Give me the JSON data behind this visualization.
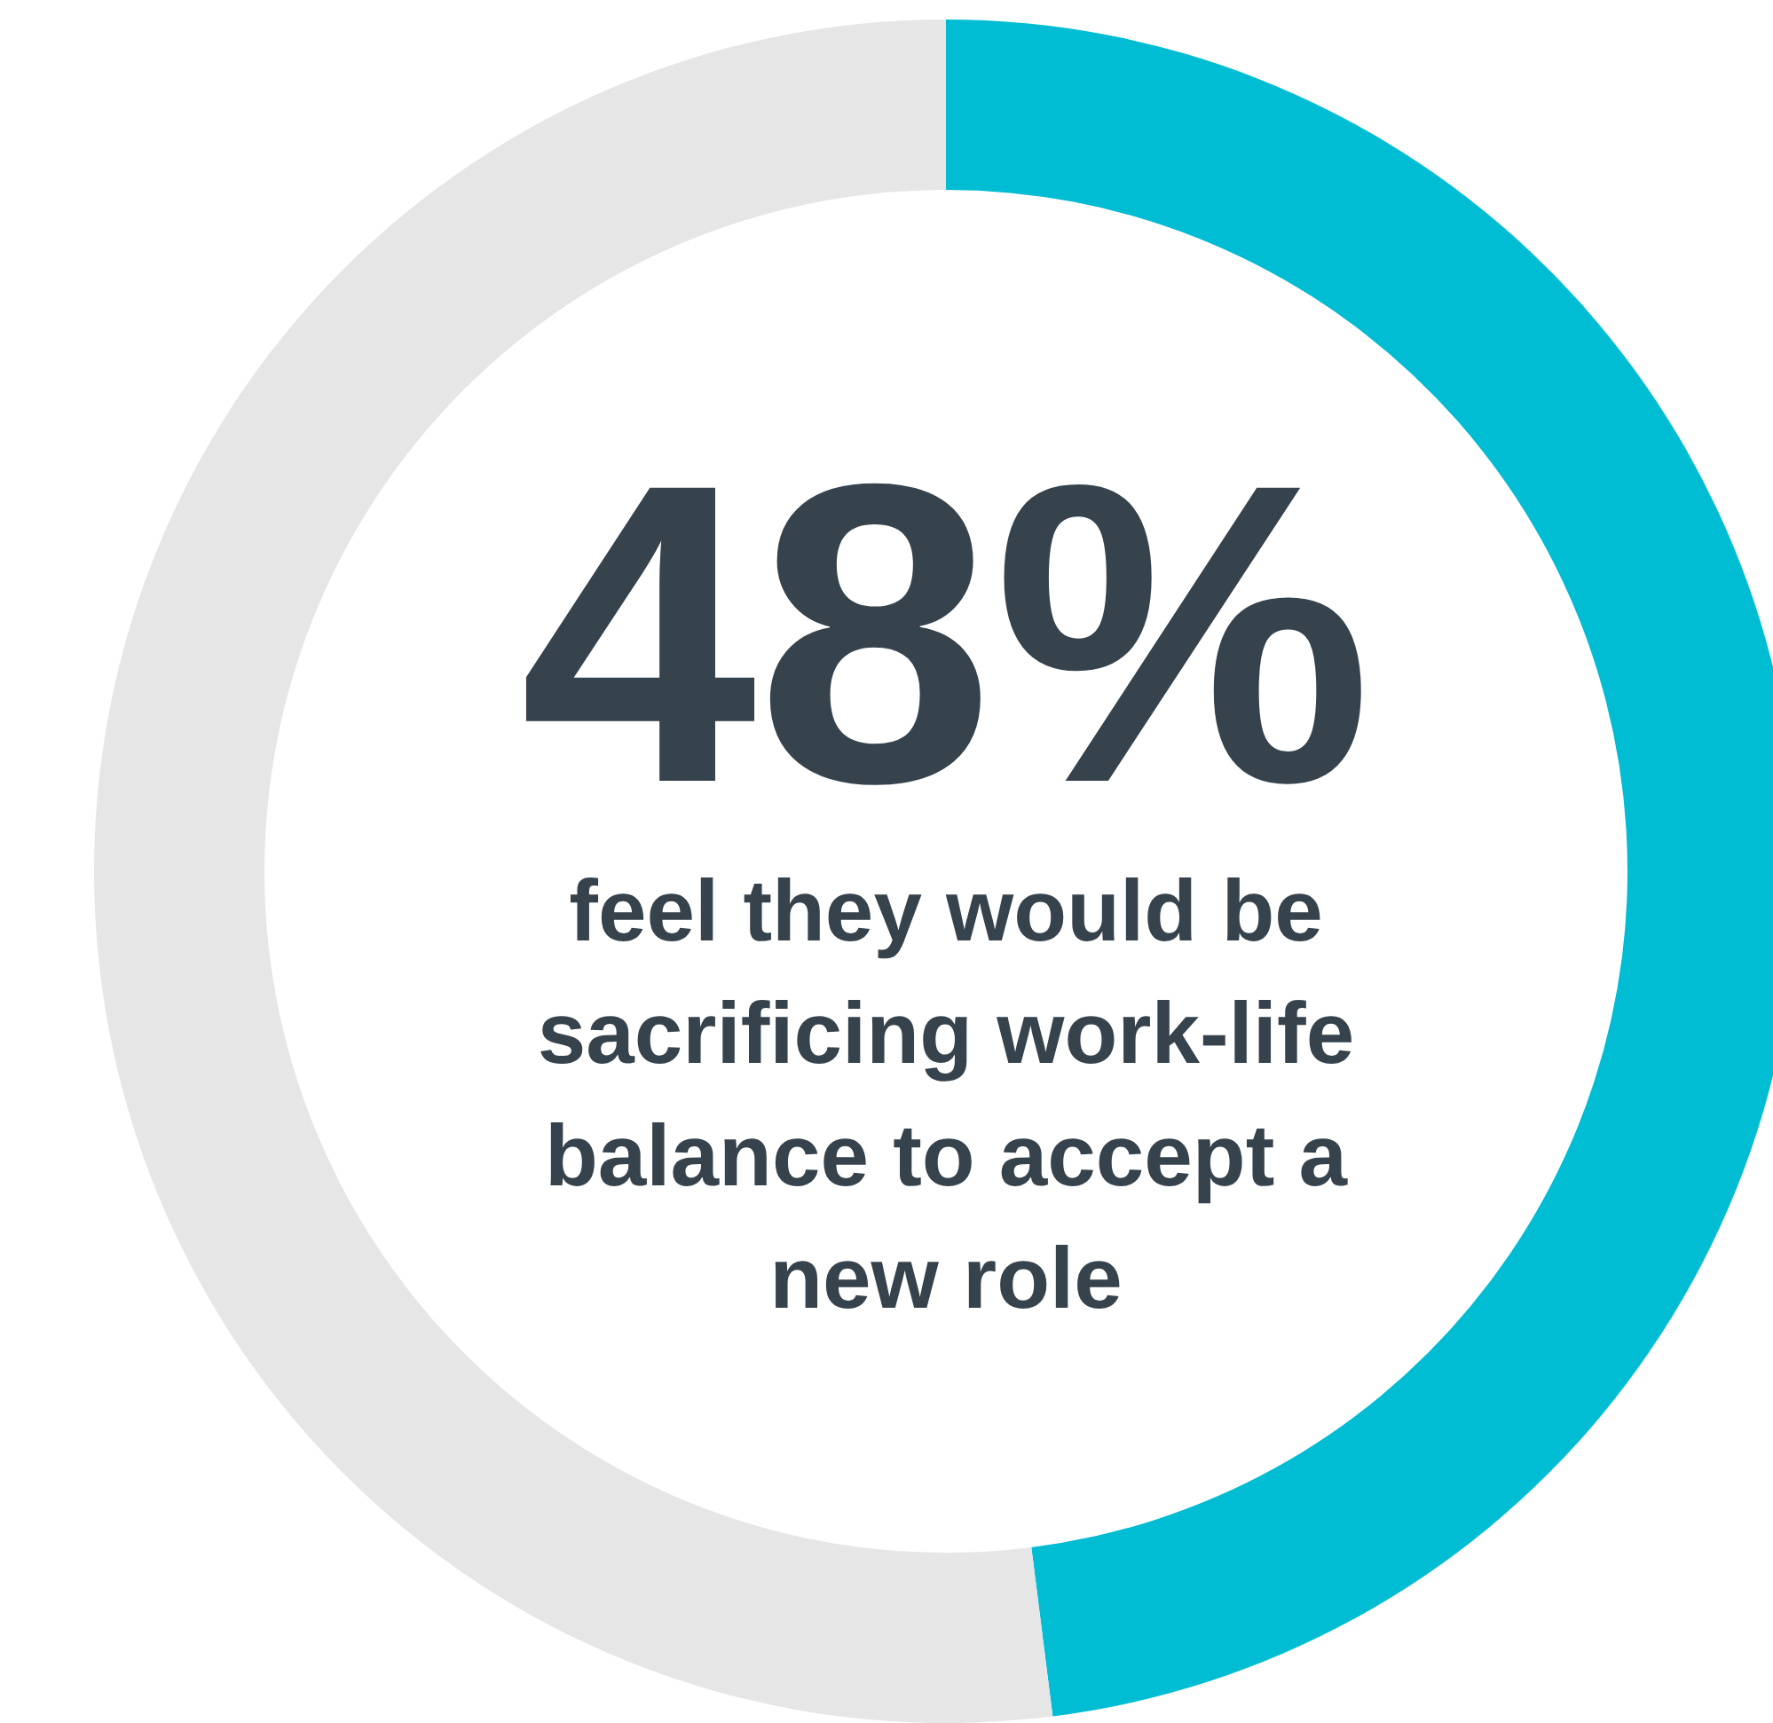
{
  "chart_data": {
    "type": "donut",
    "categories": [
      null,
      null
    ],
    "values": [
      48,
      52
    ],
    "colors": [
      "#00bdd3",
      "#e6e6e6"
    ],
    "value_labels": [
      "48%",
      null
    ],
    "annotations": [
      "feel they would be sacrificing work-life balance to accept a new role"
    ],
    "legend": false
  }
}
